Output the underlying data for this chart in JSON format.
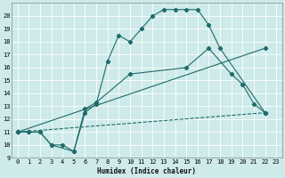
{
  "xlabel": "Humidex (Indice chaleur)",
  "bg_color": "#ceeaea",
  "grid_color": "#ffffff",
  "line_color": "#1e6b6b",
  "xlim": [
    -0.5,
    23.5
  ],
  "ylim": [
    9,
    21
  ],
  "yticks": [
    9,
    10,
    11,
    12,
    13,
    14,
    15,
    16,
    17,
    18,
    19,
    20
  ],
  "xticks": [
    0,
    1,
    2,
    3,
    4,
    5,
    6,
    7,
    8,
    9,
    10,
    11,
    12,
    13,
    14,
    15,
    16,
    17,
    18,
    19,
    20,
    21,
    22,
    23
  ],
  "curve1_x": [
    0,
    1,
    2,
    3,
    4,
    5,
    6,
    7,
    8,
    9,
    10,
    11,
    12,
    13,
    14,
    15,
    16,
    17,
    18,
    22
  ],
  "curve1_y": [
    11,
    11,
    11,
    10,
    10,
    9.5,
    12.5,
    13.2,
    16.5,
    18.5,
    18.0,
    19.0,
    20.0,
    20.5,
    20.5,
    20.5,
    20.5,
    19.3,
    17.5,
    12.5
  ],
  "curve2_x": [
    0,
    1,
    2,
    3,
    5,
    6,
    7,
    10,
    15,
    17,
    19,
    20,
    21,
    22
  ],
  "curve2_y": [
    11,
    11,
    11,
    10,
    9.5,
    12.8,
    13.3,
    15.5,
    16.0,
    17.5,
    15.5,
    14.7,
    13.2,
    12.5
  ],
  "curve3_x": [
    0,
    22
  ],
  "curve3_y": [
    11.0,
    12.5
  ],
  "curve4_x": [
    0,
    22
  ],
  "curve4_y": [
    11.0,
    17.5
  ]
}
